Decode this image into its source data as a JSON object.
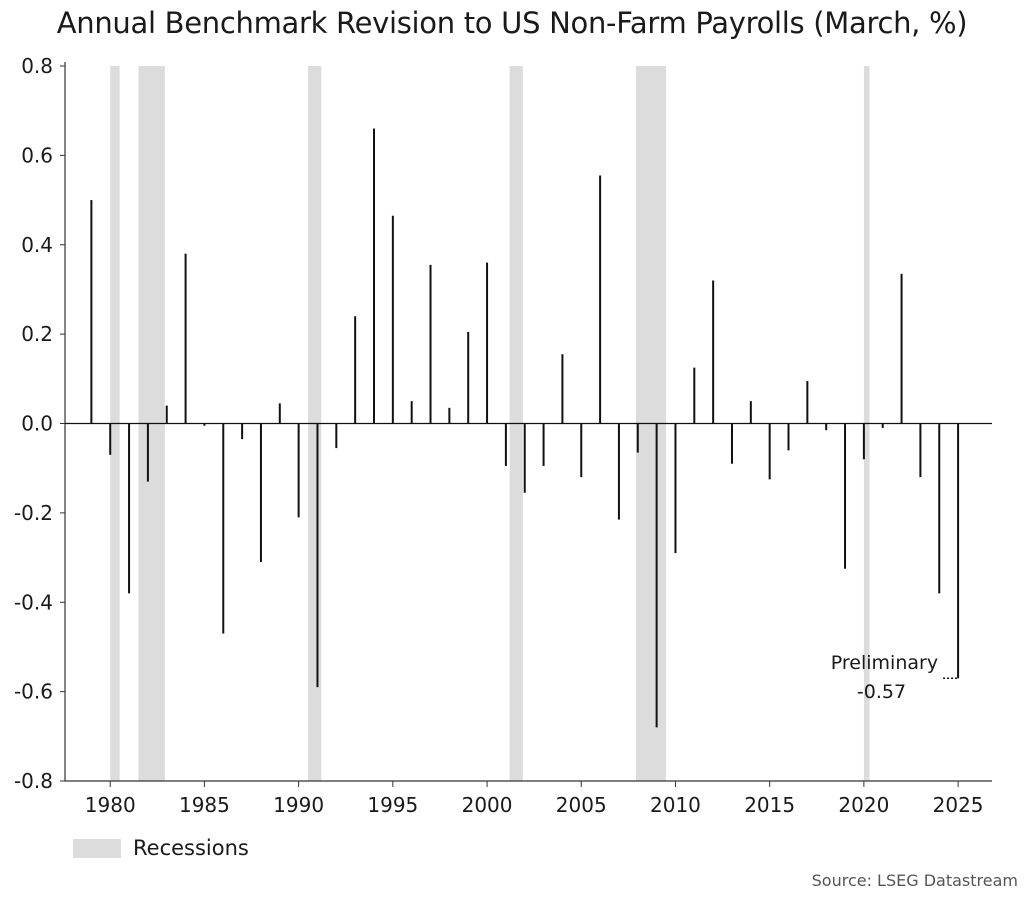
{
  "chart_data": {
    "type": "bar",
    "title": "Annual Benchmark Revision to US Non-Farm Payrolls (March, %)",
    "xlabel": "",
    "ylabel": "",
    "xlim": [
      1977.6,
      2026.8
    ],
    "ylim": [
      -0.8,
      0.8
    ],
    "y_ticks": [
      "0.8",
      "0.6",
      "0.4",
      "0.2",
      "0.0",
      "-0.2",
      "-0.4",
      "-0.6",
      "-0.8"
    ],
    "y_tick_values": [
      0.8,
      0.6,
      0.4,
      0.2,
      0.0,
      -0.2,
      -0.4,
      -0.6,
      -0.8
    ],
    "x_ticks": [
      "1980",
      "1985",
      "1990",
      "1995",
      "2000",
      "2005",
      "2010",
      "2015",
      "2020",
      "2025"
    ],
    "x_tick_values": [
      1980,
      1985,
      1990,
      1995,
      2000,
      2005,
      2010,
      2015,
      2020,
      2025
    ],
    "grid": false,
    "series": [
      {
        "bar_color": "#111111",
        "x": [
          1979,
          1980,
          1981,
          1982,
          1983,
          1984,
          1985,
          1986,
          1987,
          1988,
          1989,
          1990,
          1991,
          1992,
          1993,
          1994,
          1995,
          1996,
          1997,
          1998,
          1999,
          2000,
          2001,
          2002,
          2003,
          2004,
          2005,
          2006,
          2007,
          2008,
          2009,
          2010,
          2011,
          2012,
          2013,
          2014,
          2015,
          2016,
          2017,
          2018,
          2019,
          2020,
          2021,
          2022,
          2023,
          2024,
          2025
        ],
        "values": [
          0.5,
          -0.07,
          -0.38,
          -0.13,
          0.04,
          0.38,
          -0.005,
          -0.47,
          -0.035,
          -0.31,
          0.045,
          -0.21,
          -0.59,
          -0.055,
          0.24,
          0.66,
          0.465,
          0.05,
          0.355,
          0.035,
          0.205,
          0.36,
          -0.095,
          -0.155,
          -0.095,
          0.155,
          -0.12,
          0.555,
          -0.215,
          -0.065,
          -0.68,
          -0.29,
          0.125,
          0.32,
          -0.09,
          0.05,
          -0.125,
          -0.06,
          0.095,
          -0.015,
          -0.325,
          -0.08,
          -0.01,
          0.335,
          -0.12,
          -0.38,
          -0.57
        ]
      }
    ],
    "recessions": [
      {
        "start": 1980.0,
        "end": 1980.5
      },
      {
        "start": 1981.5,
        "end": 1982.9
      },
      {
        "start": 1990.5,
        "end": 1991.2
      },
      {
        "start": 2001.2,
        "end": 2001.9
      },
      {
        "start": 2007.9,
        "end": 2009.5
      },
      {
        "start": 2020.0,
        "end": 2020.3
      }
    ],
    "recession_color": "#dcdcdc",
    "annotation": {
      "line1": "Preliminary",
      "line2": "-0.57",
      "x": 2025,
      "y": -0.57
    },
    "legend": {
      "label": "Recessions",
      "placement": "bottom-left"
    },
    "source": "Source: LSEG Datastream"
  }
}
